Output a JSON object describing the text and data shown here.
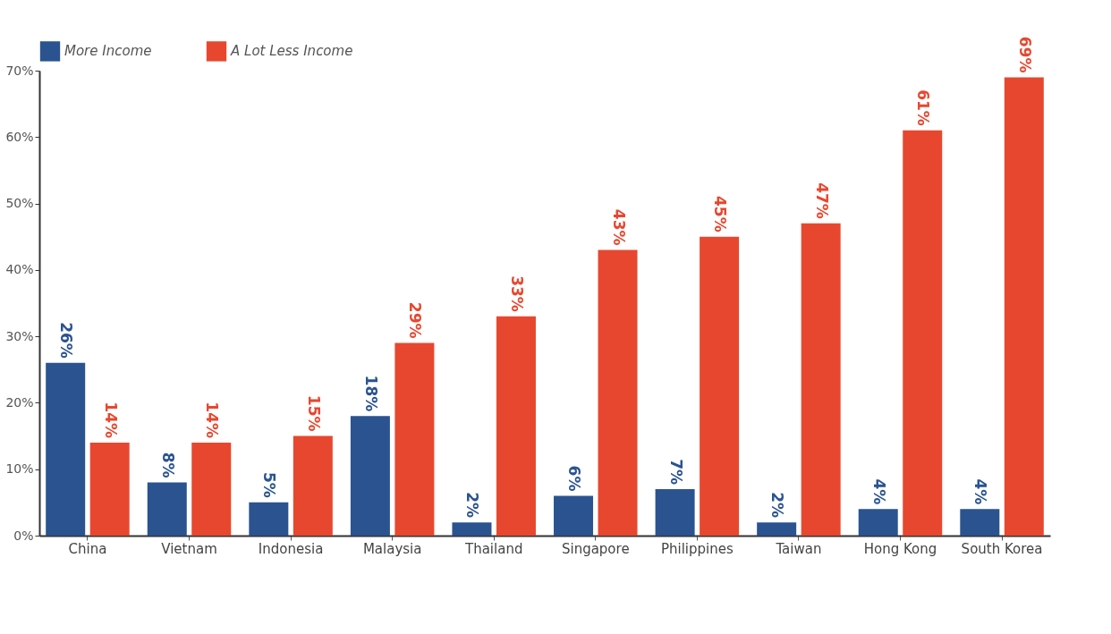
{
  "chart_data": {
    "type": "bar",
    "categories": [
      "China",
      "Vietnam",
      "Indonesia",
      "Malaysia",
      "Thailand",
      "Singapore",
      "Philippines",
      "Taiwan",
      "Hong Kong",
      "South Korea"
    ],
    "series": [
      {
        "name": "More Income",
        "color": "#2a5390",
        "values": [
          26,
          8,
          5,
          18,
          2,
          6,
          7,
          2,
          4,
          4
        ],
        "value_labels": [
          "26%",
          "8%",
          "5%",
          "18%",
          "2%",
          "6%",
          "7%",
          "2%",
          "4%",
          "4%"
        ]
      },
      {
        "name": "A Lot Less Income",
        "color": "#e8472f",
        "values": [
          14,
          14,
          15,
          29,
          33,
          43,
          45,
          47,
          61,
          69
        ],
        "value_labels": [
          "14%",
          "14%",
          "15%",
          "29%",
          "33%",
          "43%",
          "45%",
          "47%",
          "61%",
          "69%"
        ]
      }
    ],
    "ylim": [
      0,
      70
    ],
    "yticks": [
      {
        "value": 0,
        "label": "0%"
      },
      {
        "value": 10,
        "label": "10%"
      },
      {
        "value": 20,
        "label": "20%"
      },
      {
        "value": 30,
        "label": "30%"
      },
      {
        "value": 40,
        "label": "40%"
      },
      {
        "value": 50,
        "label": "50%"
      },
      {
        "value": 60,
        "label": "60%"
      },
      {
        "value": 70,
        "label": "70%"
      }
    ],
    "grid": false,
    "legend": "top left"
  }
}
